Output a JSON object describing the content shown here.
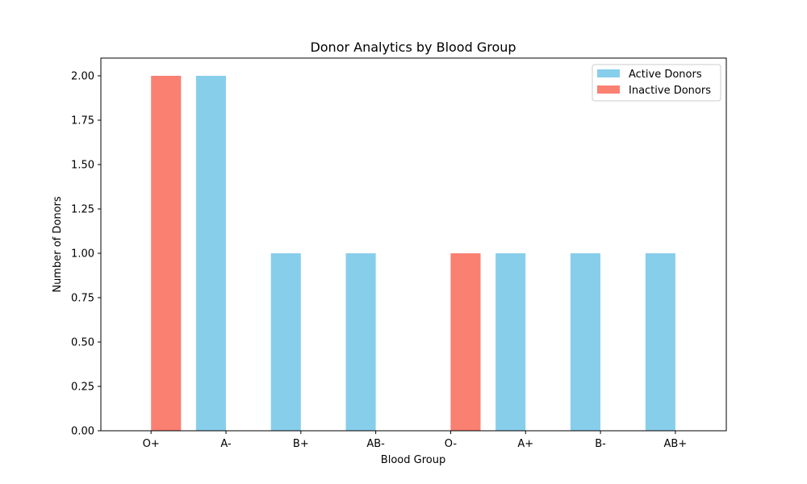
{
  "chart_data": {
    "type": "bar",
    "title": "Donor Analytics by Blood Group",
    "xlabel": "Blood Group",
    "ylabel": "Number of Donors",
    "categories": [
      "O+",
      "A-",
      "B+",
      "AB-",
      "O-",
      "A+",
      "B-",
      "AB+"
    ],
    "series": [
      {
        "name": "Active Donors",
        "color": "#87CEEB",
        "values": [
          0,
          2,
          1,
          1,
          0,
          1,
          1,
          1
        ]
      },
      {
        "name": "Inactive Donors",
        "color": "#FA8072",
        "values": [
          2,
          0,
          0,
          0,
          1,
          0,
          0,
          0
        ]
      }
    ],
    "ylim": [
      0,
      2.1
    ],
    "yticks": [
      "0.00",
      "0.25",
      "0.50",
      "0.75",
      "1.00",
      "1.25",
      "1.50",
      "1.75",
      "2.00"
    ],
    "legend_position": "top-right",
    "grid": false
  }
}
